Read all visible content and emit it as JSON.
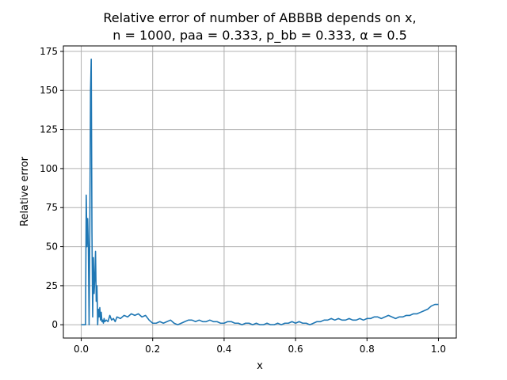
{
  "chart_data": {
    "type": "line",
    "title_line1": "Relative error of number of ABBBB depends on x,",
    "title_line2": "n = 1000, paa = 0.333, p_bb = 0.333, α = 0.5",
    "xlabel": "x",
    "ylabel": "Relative error",
    "xlim": [
      -0.05,
      1.05
    ],
    "ylim": [
      -8.5,
      178.5
    ],
    "x_ticks": [
      0.0,
      0.2,
      0.4,
      0.6,
      0.8,
      1.0
    ],
    "x_tick_labels": [
      "0.0",
      "0.2",
      "0.4",
      "0.6",
      "0.8",
      "1.0"
    ],
    "y_ticks": [
      0,
      25,
      50,
      75,
      100,
      125,
      150,
      175
    ],
    "y_tick_labels": [
      "0",
      "25",
      "50",
      "75",
      "100",
      "125",
      "150",
      "175"
    ],
    "grid": true,
    "series": [
      {
        "color": "#1f77b4",
        "x": [
          0.0,
          0.01,
          0.012,
          0.014,
          0.016,
          0.018,
          0.02,
          0.022,
          0.024,
          0.026,
          0.028,
          0.03,
          0.032,
          0.034,
          0.036,
          0.038,
          0.04,
          0.042,
          0.044,
          0.046,
          0.048,
          0.05,
          0.052,
          0.054,
          0.056,
          0.058,
          0.06,
          0.062,
          0.064,
          0.066,
          0.07,
          0.075,
          0.08,
          0.085,
          0.09,
          0.095,
          0.1,
          0.11,
          0.12,
          0.13,
          0.14,
          0.15,
          0.16,
          0.17,
          0.18,
          0.19,
          0.2,
          0.21,
          0.22,
          0.23,
          0.24,
          0.25,
          0.26,
          0.27,
          0.28,
          0.29,
          0.3,
          0.31,
          0.32,
          0.33,
          0.34,
          0.35,
          0.36,
          0.37,
          0.38,
          0.39,
          0.4,
          0.41,
          0.42,
          0.43,
          0.44,
          0.45,
          0.46,
          0.47,
          0.48,
          0.49,
          0.5,
          0.51,
          0.52,
          0.53,
          0.54,
          0.55,
          0.56,
          0.57,
          0.58,
          0.59,
          0.6,
          0.61,
          0.62,
          0.63,
          0.64,
          0.65,
          0.66,
          0.67,
          0.68,
          0.69,
          0.7,
          0.71,
          0.72,
          0.73,
          0.74,
          0.75,
          0.76,
          0.77,
          0.78,
          0.79,
          0.8,
          0.81,
          0.82,
          0.83,
          0.84,
          0.85,
          0.86,
          0.87,
          0.88,
          0.89,
          0.9,
          0.91,
          0.92,
          0.93,
          0.94,
          0.95,
          0.96,
          0.97,
          0.98,
          0.99,
          1.0
        ],
        "y": [
          0,
          0,
          0,
          83,
          50,
          68,
          50,
          0,
          60,
          150,
          170,
          60,
          5,
          43,
          20,
          30,
          47,
          15,
          25,
          0,
          10,
          5,
          11,
          3,
          8,
          2,
          3,
          1,
          4,
          2,
          3,
          2,
          6,
          3,
          4,
          2,
          5,
          4,
          6,
          5,
          7,
          6,
          7,
          5,
          6,
          3,
          1,
          1,
          2,
          1,
          2,
          3,
          1,
          0,
          1,
          2,
          3,
          3,
          2,
          3,
          2,
          2,
          3,
          2,
          2,
          1,
          1,
          2,
          2,
          1,
          1,
          0,
          1,
          1,
          0,
          1,
          0,
          0,
          1,
          0,
          0,
          1,
          0,
          1,
          1,
          2,
          1,
          2,
          1,
          1,
          0,
          1,
          2,
          2,
          3,
          3,
          4,
          3,
          4,
          3,
          3,
          4,
          3,
          3,
          4,
          3,
          4,
          4,
          5,
          5,
          4,
          5,
          6,
          5,
          4,
          5,
          5,
          6,
          6,
          7,
          7,
          8,
          9,
          10,
          12,
          13,
          13
        ]
      }
    ]
  }
}
